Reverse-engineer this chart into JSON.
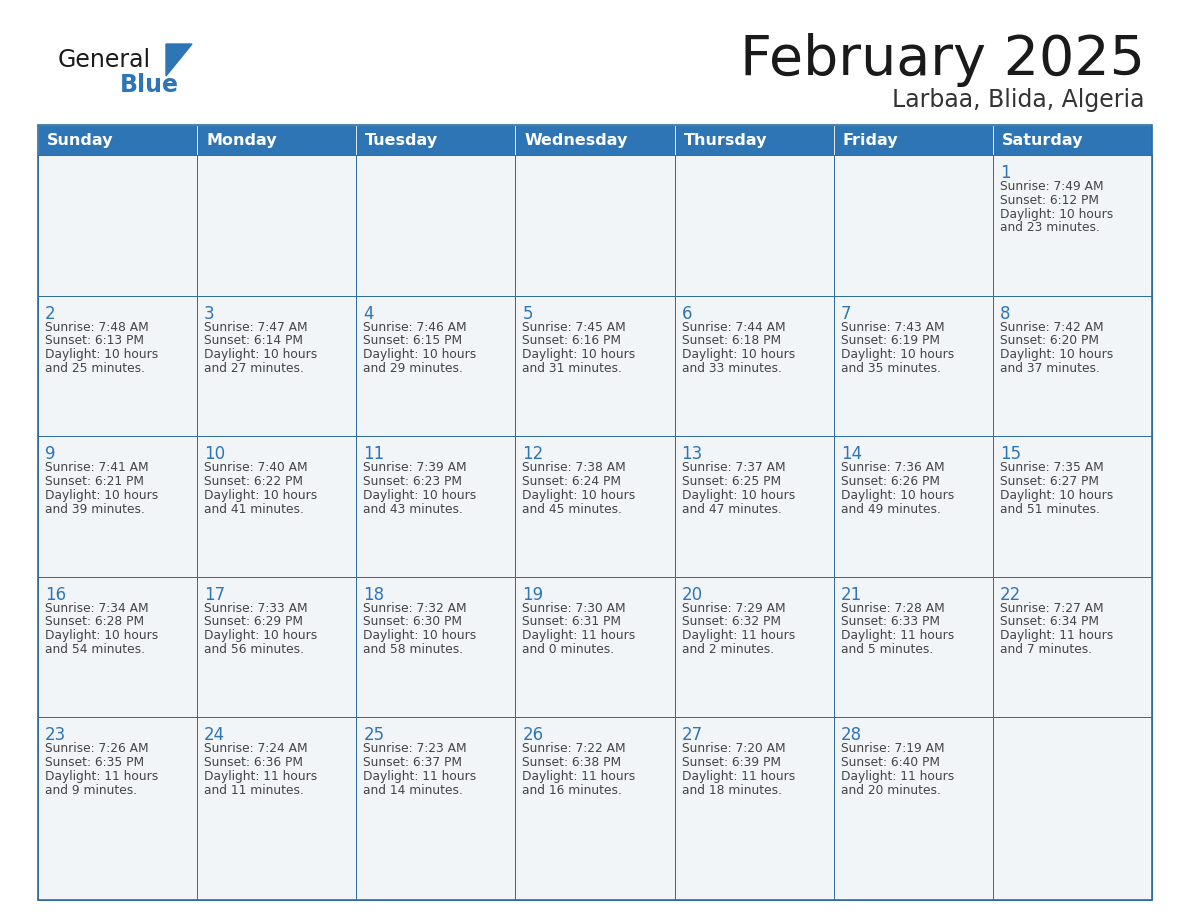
{
  "title": "February 2025",
  "subtitle": "Larbaa, Blida, Algeria",
  "header_bg": "#2E75B6",
  "header_text_color": "#FFFFFF",
  "cell_border_color": "#2E6B9E",
  "cell_inner_border_color": "#C8D4E0",
  "day_number_color": "#2E75B6",
  "detail_text_color": "#444444",
  "background_color": "#FFFFFF",
  "cell_bg": "#F2F5F8",
  "days_of_week": [
    "Sunday",
    "Monday",
    "Tuesday",
    "Wednesday",
    "Thursday",
    "Friday",
    "Saturday"
  ],
  "weeks": [
    [
      {
        "day": null,
        "sunrise": null,
        "sunset": null,
        "daylight": null
      },
      {
        "day": null,
        "sunrise": null,
        "sunset": null,
        "daylight": null
      },
      {
        "day": null,
        "sunrise": null,
        "sunset": null,
        "daylight": null
      },
      {
        "day": null,
        "sunrise": null,
        "sunset": null,
        "daylight": null
      },
      {
        "day": null,
        "sunrise": null,
        "sunset": null,
        "daylight": null
      },
      {
        "day": null,
        "sunrise": null,
        "sunset": null,
        "daylight": null
      },
      {
        "day": 1,
        "sunrise": "7:49 AM",
        "sunset": "6:12 PM",
        "daylight": "10 hours\nand 23 minutes."
      }
    ],
    [
      {
        "day": 2,
        "sunrise": "7:48 AM",
        "sunset": "6:13 PM",
        "daylight": "10 hours\nand 25 minutes."
      },
      {
        "day": 3,
        "sunrise": "7:47 AM",
        "sunset": "6:14 PM",
        "daylight": "10 hours\nand 27 minutes."
      },
      {
        "day": 4,
        "sunrise": "7:46 AM",
        "sunset": "6:15 PM",
        "daylight": "10 hours\nand 29 minutes."
      },
      {
        "day": 5,
        "sunrise": "7:45 AM",
        "sunset": "6:16 PM",
        "daylight": "10 hours\nand 31 minutes."
      },
      {
        "day": 6,
        "sunrise": "7:44 AM",
        "sunset": "6:18 PM",
        "daylight": "10 hours\nand 33 minutes."
      },
      {
        "day": 7,
        "sunrise": "7:43 AM",
        "sunset": "6:19 PM",
        "daylight": "10 hours\nand 35 minutes."
      },
      {
        "day": 8,
        "sunrise": "7:42 AM",
        "sunset": "6:20 PM",
        "daylight": "10 hours\nand 37 minutes."
      }
    ],
    [
      {
        "day": 9,
        "sunrise": "7:41 AM",
        "sunset": "6:21 PM",
        "daylight": "10 hours\nand 39 minutes."
      },
      {
        "day": 10,
        "sunrise": "7:40 AM",
        "sunset": "6:22 PM",
        "daylight": "10 hours\nand 41 minutes."
      },
      {
        "day": 11,
        "sunrise": "7:39 AM",
        "sunset": "6:23 PM",
        "daylight": "10 hours\nand 43 minutes."
      },
      {
        "day": 12,
        "sunrise": "7:38 AM",
        "sunset": "6:24 PM",
        "daylight": "10 hours\nand 45 minutes."
      },
      {
        "day": 13,
        "sunrise": "7:37 AM",
        "sunset": "6:25 PM",
        "daylight": "10 hours\nand 47 minutes."
      },
      {
        "day": 14,
        "sunrise": "7:36 AM",
        "sunset": "6:26 PM",
        "daylight": "10 hours\nand 49 minutes."
      },
      {
        "day": 15,
        "sunrise": "7:35 AM",
        "sunset": "6:27 PM",
        "daylight": "10 hours\nand 51 minutes."
      }
    ],
    [
      {
        "day": 16,
        "sunrise": "7:34 AM",
        "sunset": "6:28 PM",
        "daylight": "10 hours\nand 54 minutes."
      },
      {
        "day": 17,
        "sunrise": "7:33 AM",
        "sunset": "6:29 PM",
        "daylight": "10 hours\nand 56 minutes."
      },
      {
        "day": 18,
        "sunrise": "7:32 AM",
        "sunset": "6:30 PM",
        "daylight": "10 hours\nand 58 minutes."
      },
      {
        "day": 19,
        "sunrise": "7:30 AM",
        "sunset": "6:31 PM",
        "daylight": "11 hours\nand 0 minutes."
      },
      {
        "day": 20,
        "sunrise": "7:29 AM",
        "sunset": "6:32 PM",
        "daylight": "11 hours\nand 2 minutes."
      },
      {
        "day": 21,
        "sunrise": "7:28 AM",
        "sunset": "6:33 PM",
        "daylight": "11 hours\nand 5 minutes."
      },
      {
        "day": 22,
        "sunrise": "7:27 AM",
        "sunset": "6:34 PM",
        "daylight": "11 hours\nand 7 minutes."
      }
    ],
    [
      {
        "day": 23,
        "sunrise": "7:26 AM",
        "sunset": "6:35 PM",
        "daylight": "11 hours\nand 9 minutes."
      },
      {
        "day": 24,
        "sunrise": "7:24 AM",
        "sunset": "6:36 PM",
        "daylight": "11 hours\nand 11 minutes."
      },
      {
        "day": 25,
        "sunrise": "7:23 AM",
        "sunset": "6:37 PM",
        "daylight": "11 hours\nand 14 minutes."
      },
      {
        "day": 26,
        "sunrise": "7:22 AM",
        "sunset": "6:38 PM",
        "daylight": "11 hours\nand 16 minutes."
      },
      {
        "day": 27,
        "sunrise": "7:20 AM",
        "sunset": "6:39 PM",
        "daylight": "11 hours\nand 18 minutes."
      },
      {
        "day": 28,
        "sunrise": "7:19 AM",
        "sunset": "6:40 PM",
        "daylight": "11 hours\nand 20 minutes."
      },
      {
        "day": null,
        "sunrise": null,
        "sunset": null,
        "daylight": null
      }
    ]
  ]
}
